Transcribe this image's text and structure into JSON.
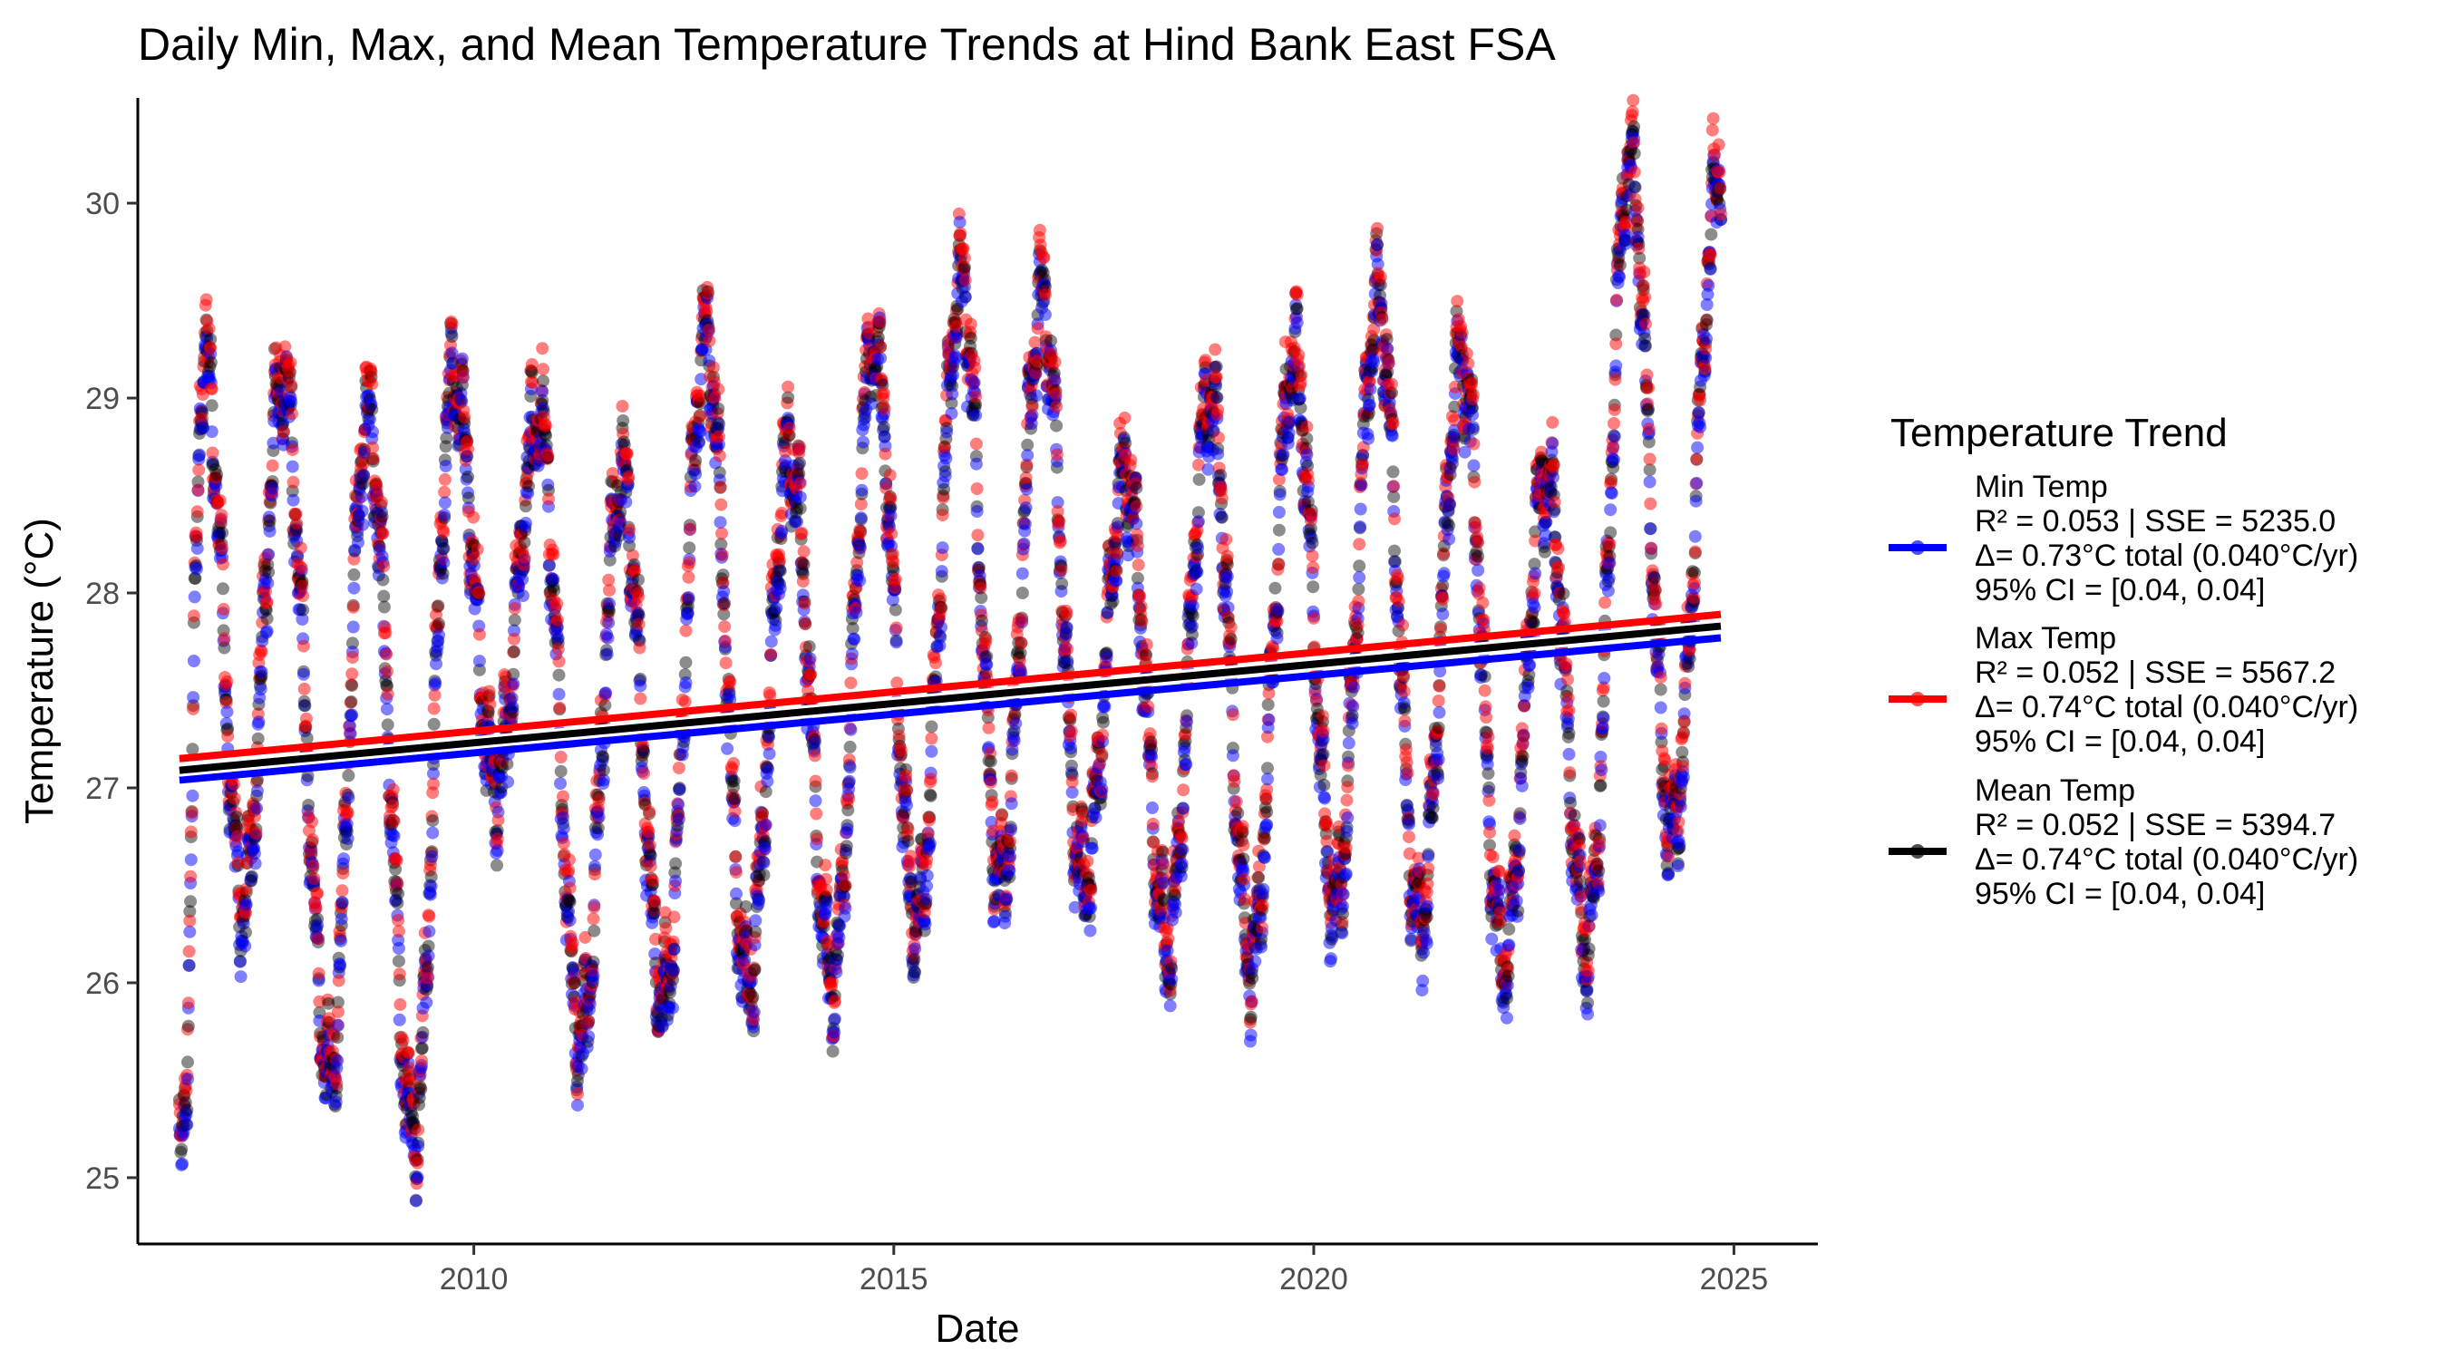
{
  "chart_data": {
    "type": "scatter",
    "title": "Daily Min, Max, and Mean Temperature Trends at Hind Bank East FSA",
    "xlabel": "Date",
    "ylabel": "Temperature (°C)",
    "x_range": [
      "2006-01-01",
      "2026-01-01"
    ],
    "ylim": [
      24.66,
      30.54
    ],
    "x_ticks": [
      {
        "date": "2010-01-01",
        "label": "2010"
      },
      {
        "date": "2015-01-01",
        "label": "2015"
      },
      {
        "date": "2020-01-01",
        "label": "2020"
      },
      {
        "date": "2025-01-01",
        "label": "2025"
      }
    ],
    "y_ticks": [
      {
        "value": 25,
        "label": "25"
      },
      {
        "value": 26,
        "label": "26"
      },
      {
        "value": 27,
        "label": "27"
      },
      {
        "value": 28,
        "label": "28"
      },
      {
        "value": 29,
        "label": "29"
      },
      {
        "value": 30,
        "label": "30"
      }
    ],
    "grid": false,
    "legend": {
      "title": "Temperature Trend",
      "position": "right"
    },
    "date_range": [
      "2006-07-01",
      "2024-11-05"
    ],
    "seasonal_extremes": [
      {
        "date": "2006-07-10",
        "value": 25.1
      },
      {
        "date": "2006-10-15",
        "value": 29.2
      },
      {
        "date": "2007-04-05",
        "value": 26.4
      },
      {
        "date": "2007-09-20",
        "value": 29.1
      },
      {
        "date": "2008-04-15",
        "value": 25.5
      },
      {
        "date": "2008-09-25",
        "value": 28.9
      },
      {
        "date": "2009-04-15",
        "value": 25.2
      },
      {
        "date": "2009-10-05",
        "value": 29.1
      },
      {
        "date": "2010-04-05",
        "value": 27.0
      },
      {
        "date": "2010-10-10",
        "value": 28.9
      },
      {
        "date": "2011-04-10",
        "value": 25.7
      },
      {
        "date": "2011-10-05",
        "value": 28.6
      },
      {
        "date": "2012-04-05",
        "value": 25.9
      },
      {
        "date": "2012-10-05",
        "value": 29.3
      },
      {
        "date": "2013-04-05",
        "value": 26.0
      },
      {
        "date": "2013-10-05",
        "value": 28.7
      },
      {
        "date": "2014-04-10",
        "value": 26.0
      },
      {
        "date": "2014-10-05",
        "value": 29.3
      },
      {
        "date": "2015-04-10",
        "value": 26.3
      },
      {
        "date": "2015-10-20",
        "value": 29.6
      },
      {
        "date": "2016-04-10",
        "value": 26.5
      },
      {
        "date": "2016-10-05",
        "value": 29.5
      },
      {
        "date": "2017-04-05",
        "value": 26.5
      },
      {
        "date": "2017-10-05",
        "value": 28.6
      },
      {
        "date": "2018-04-05",
        "value": 26.2
      },
      {
        "date": "2018-10-05",
        "value": 29.0
      },
      {
        "date": "2019-04-05",
        "value": 26.1
      },
      {
        "date": "2019-10-05",
        "value": 29.2
      },
      {
        "date": "2020-04-05",
        "value": 26.4
      },
      {
        "date": "2020-10-05",
        "value": 29.5
      },
      {
        "date": "2021-04-05",
        "value": 26.3
      },
      {
        "date": "2021-10-05",
        "value": 29.2
      },
      {
        "date": "2022-04-05",
        "value": 26.1
      },
      {
        "date": "2022-10-05",
        "value": 28.6
      },
      {
        "date": "2023-04-05",
        "value": 26.2
      },
      {
        "date": "2023-10-05",
        "value": 30.2
      },
      {
        "date": "2024-04-05",
        "value": 26.8
      },
      {
        "date": "2024-11-05",
        "value": 30.2
      }
    ],
    "series": [
      {
        "name": "Min Temp",
        "color": "#0000ff",
        "offset": -0.05,
        "alpha": 0.5,
        "trend": {
          "start_date": "2006-07-01",
          "start_value": 27.04,
          "end_date": "2024-11-05",
          "end_value": 27.77
        },
        "legend_lines": [
          "Min Temp",
          "R² = 0.053 | SSE = 5235.0",
          "Δ= 0.73°C total (0.040°C/yr)",
          "95% CI = [0.04, 0.04]"
        ]
      },
      {
        "name": "Max Temp",
        "color": "#ff0000",
        "offset": 0.06,
        "alpha": 0.5,
        "trend": {
          "start_date": "2006-07-01",
          "start_value": 27.15,
          "end_date": "2024-11-05",
          "end_value": 27.89
        },
        "legend_lines": [
          "Max Temp",
          "R² = 0.052 | SSE = 5567.2",
          "Δ= 0.74°C total (0.040°C/yr)",
          "95% CI = [0.04, 0.04]"
        ]
      },
      {
        "name": "Mean Temp",
        "color": "#000000",
        "offset": 0.0,
        "alpha": 0.45,
        "trend": {
          "start_date": "2006-07-01",
          "start_value": 27.09,
          "end_date": "2024-11-05",
          "end_value": 27.83
        },
        "legend_lines": [
          "Mean Temp",
          "R² = 0.052 | SSE = 5394.7",
          "Δ= 0.74°C total (0.040°C/yr)",
          "95% CI = [0.04, 0.04]"
        ]
      }
    ]
  }
}
